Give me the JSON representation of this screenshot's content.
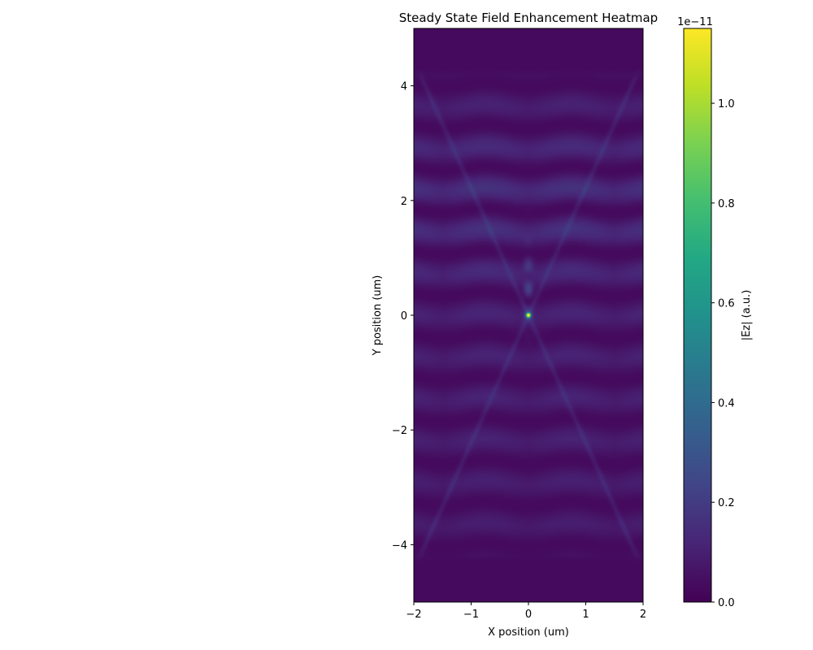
{
  "chart_data": {
    "type": "heatmap",
    "title": "Steady State Field Enhancement Heatmap",
    "xlabel": "X position (um)",
    "ylabel": "Y position (um)",
    "xlim": [
      -2,
      2
    ],
    "ylim": [
      -5,
      5
    ],
    "xticks": [
      -2,
      -1,
      0,
      1,
      2
    ],
    "yticks": [
      -4,
      -2,
      0,
      2,
      4
    ],
    "xtick_labels": [
      "−2",
      "−1",
      "0",
      "1",
      "2"
    ],
    "ytick_labels": [
      "−4",
      "−2",
      "0",
      "2",
      "4"
    ],
    "colormap": "viridis",
    "colorbar": {
      "label": "|Ez| (a.u.)",
      "offset_text": "1e−11",
      "range": [
        0,
        1.15
      ],
      "ticks": [
        0.0,
        0.2,
        0.4,
        0.6,
        0.8,
        1.0
      ],
      "tick_labels": [
        "0.0",
        "0.2",
        "0.4",
        "0.6",
        "0.8",
        "1.0"
      ]
    },
    "grid": false,
    "features": {
      "background_value": 0.03,
      "focal_spot": {
        "x": 0,
        "y": 0,
        "value": 1.15
      },
      "bright_band_center_y": 2.0,
      "crossing_beams": true
    }
  }
}
